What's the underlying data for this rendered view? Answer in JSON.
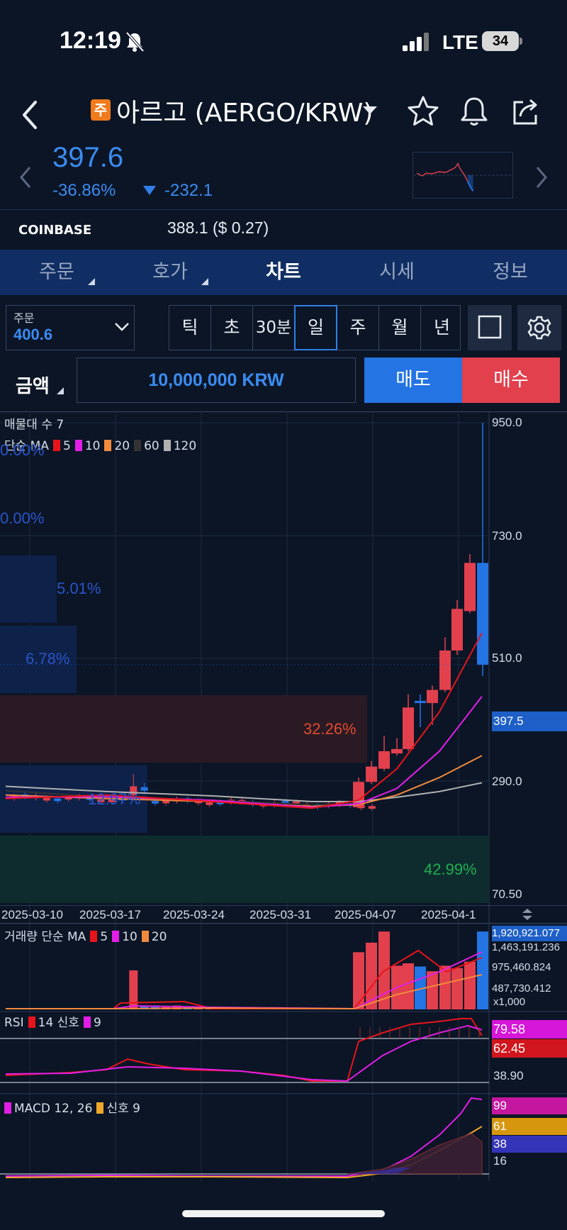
{
  "status": {
    "time": "12:19",
    "network": "LTE",
    "battery": "34"
  },
  "header": {
    "badge": "주",
    "title": "아르고 (AERGO/KRW)"
  },
  "price": {
    "current": "397.6",
    "change_pct": "-36.86%",
    "change_abs": "-232.1"
  },
  "exchange": {
    "name": "COINBASE",
    "price": "388.1 ($ 0.27)"
  },
  "tabs": [
    {
      "label": "주문"
    },
    {
      "label": "호가"
    },
    {
      "label": "차트"
    },
    {
      "label": "시세"
    },
    {
      "label": "정보"
    }
  ],
  "controls": {
    "order_label": "주문",
    "order_value": "400.6",
    "periods": [
      "틱",
      "초",
      "30분",
      "일",
      "주",
      "월",
      "년"
    ],
    "active_period": "일"
  },
  "amount": {
    "label": "금액",
    "value": "10,000,000 KRW",
    "sell": "매도",
    "buy": "매수"
  },
  "chart": {
    "volume_profile_title": "매물대 수 7",
    "ma_legend": {
      "prefix": "단순 MA",
      "periods": [
        "5",
        "10",
        "20",
        "60",
        "120"
      ]
    },
    "profile_pcts": [
      "0.00%",
      "0.00%",
      "5.01%",
      "6.78%",
      "32.26%",
      "12.97%",
      "42.99%"
    ],
    "price_axis": [
      "950.0",
      "730.0",
      "510.0",
      "397.5",
      "290.0",
      "70.50"
    ],
    "date_axis": [
      "2025-03-10",
      "2025-03-17",
      "2025-03-24",
      "2025-03-31",
      "2025-04-07",
      "2025-04-1"
    ],
    "volume_legend": {
      "prefix": "거래량 단순 MA",
      "periods": [
        "5",
        "10",
        "20"
      ]
    },
    "volume_axis": [
      "1,920,921.077",
      "1,463,191.236",
      "975,460.824",
      "487,730.412",
      "x1,000"
    ],
    "rsi_legend": {
      "prefix": "RSI",
      "period": "14",
      "signal_label": "신호",
      "signal": "9"
    },
    "rsi_axis": {
      "rsi": "79.58",
      "signal": "62.45",
      "low": "38.90"
    },
    "macd_legend": {
      "prefix": "MACD 12, 26",
      "signal_label": "신호 9"
    },
    "macd_axis": {
      "macd": "99",
      "signal": "61",
      "hist": "38",
      "low": "16"
    }
  },
  "colors": {
    "up": "#e2404d",
    "down": "#2474e3",
    "ma5": "#e8141b",
    "ma10": "#e21ee6",
    "ma20": "#f08a3c",
    "ma60": "#333333",
    "ma120": "#b0b0b0",
    "bg": "#0b1526"
  }
}
